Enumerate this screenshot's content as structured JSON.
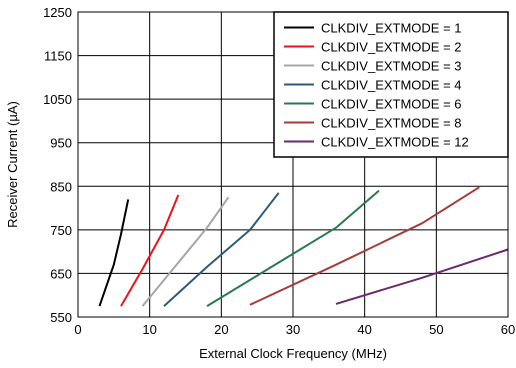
{
  "chart_data": {
    "type": "line",
    "title": "",
    "xlabel": "External Clock Frequency (MHz)",
    "ylabel": "Receiver Current (µA)",
    "xlim": [
      0,
      60
    ],
    "ylim": [
      550,
      1250
    ],
    "x_ticks": [
      "0",
      "10",
      "20",
      "30",
      "40",
      "50",
      "60"
    ],
    "y_ticks": [
      "550",
      "650",
      "750",
      "850",
      "950",
      "1050",
      "1150",
      "1250"
    ],
    "grid": true,
    "legend_position": "top-right",
    "series": [
      {
        "name": "CLKDIV_EXTMODE = 1",
        "color": "#000000",
        "x": [
          3,
          5,
          6,
          7
        ],
        "y": [
          575,
          670,
          740,
          820
        ]
      },
      {
        "name": "CLKDIV_EXTMODE = 2",
        "color": "#e8141b",
        "x": [
          6,
          9,
          12,
          14
        ],
        "y": [
          575,
          660,
          750,
          830
        ]
      },
      {
        "name": "CLKDIV_EXTMODE = 3",
        "color": "#a6a6a6",
        "x": [
          9,
          13,
          18,
          21
        ],
        "y": [
          575,
          655,
          755,
          825
        ]
      },
      {
        "name": "CLKDIV_EXTMODE = 4",
        "color": "#2f5a7a",
        "x": [
          12,
          18,
          24,
          28
        ],
        "y": [
          575,
          665,
          750,
          835
        ]
      },
      {
        "name": "CLKDIV_EXTMODE = 6",
        "color": "#2a7a4f",
        "x": [
          18,
          27,
          36,
          42
        ],
        "y": [
          575,
          665,
          755,
          840
        ]
      },
      {
        "name": "CLKDIV_EXTMODE = 8",
        "color": "#a83a3a",
        "x": [
          24,
          36,
          48,
          56
        ],
        "y": [
          578,
          670,
          765,
          848
        ]
      },
      {
        "name": "CLKDIV_EXTMODE = 12",
        "color": "#6a2a6e",
        "x": [
          36,
          48,
          60
        ],
        "y": [
          580,
          640,
          705
        ]
      }
    ]
  }
}
